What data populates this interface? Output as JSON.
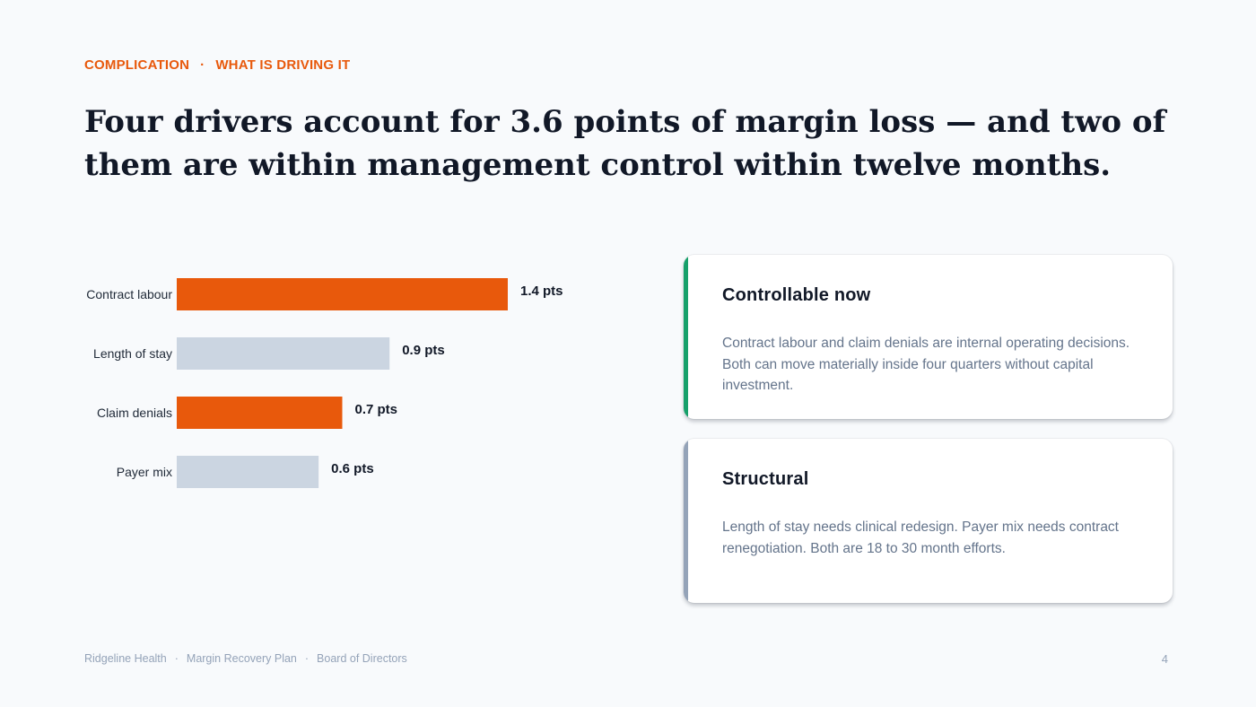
{
  "eyebrow": {
    "section": "COMPLICATION",
    "separator": "·",
    "topic": "WHAT IS DRIVING IT"
  },
  "title": "Four drivers account for 3.6 points of margin loss — and two of them are within management control within twelve months.",
  "colors": {
    "accent": "#e8590c",
    "muted_bar": "#cbd5e1",
    "controllable": "#16a06a",
    "structural": "#94a3b8"
  },
  "chart_data": {
    "type": "bar",
    "orientation": "horizontal",
    "categories": [
      "Contract labour",
      "Length of stay",
      "Claim denials",
      "Payer mix"
    ],
    "values": [
      1.4,
      0.9,
      0.7,
      0.6
    ],
    "value_labels": [
      "1.4 pts",
      "0.9 pts",
      "0.7 pts",
      "0.6 pts"
    ],
    "highlight": [
      true,
      false,
      true,
      false
    ],
    "xlim": [
      0,
      1.4
    ],
    "grid": false,
    "title": "",
    "xlabel": "",
    "ylabel": ""
  },
  "cards": [
    {
      "heading": "Controllable now",
      "body": "Contract labour and claim denials are internal operating decisions. Both can move materially inside four quarters without capital investment."
    },
    {
      "heading": "Structural",
      "body": "Length of stay needs clinical redesign. Payer mix needs contract renegotiation. Both are 18 to 30 month efforts."
    }
  ],
  "footer": {
    "org": "Ridgeline Health",
    "sep": "·",
    "deck": "Margin Recovery Plan",
    "audience": "Board of Directors"
  },
  "page_number": "4"
}
